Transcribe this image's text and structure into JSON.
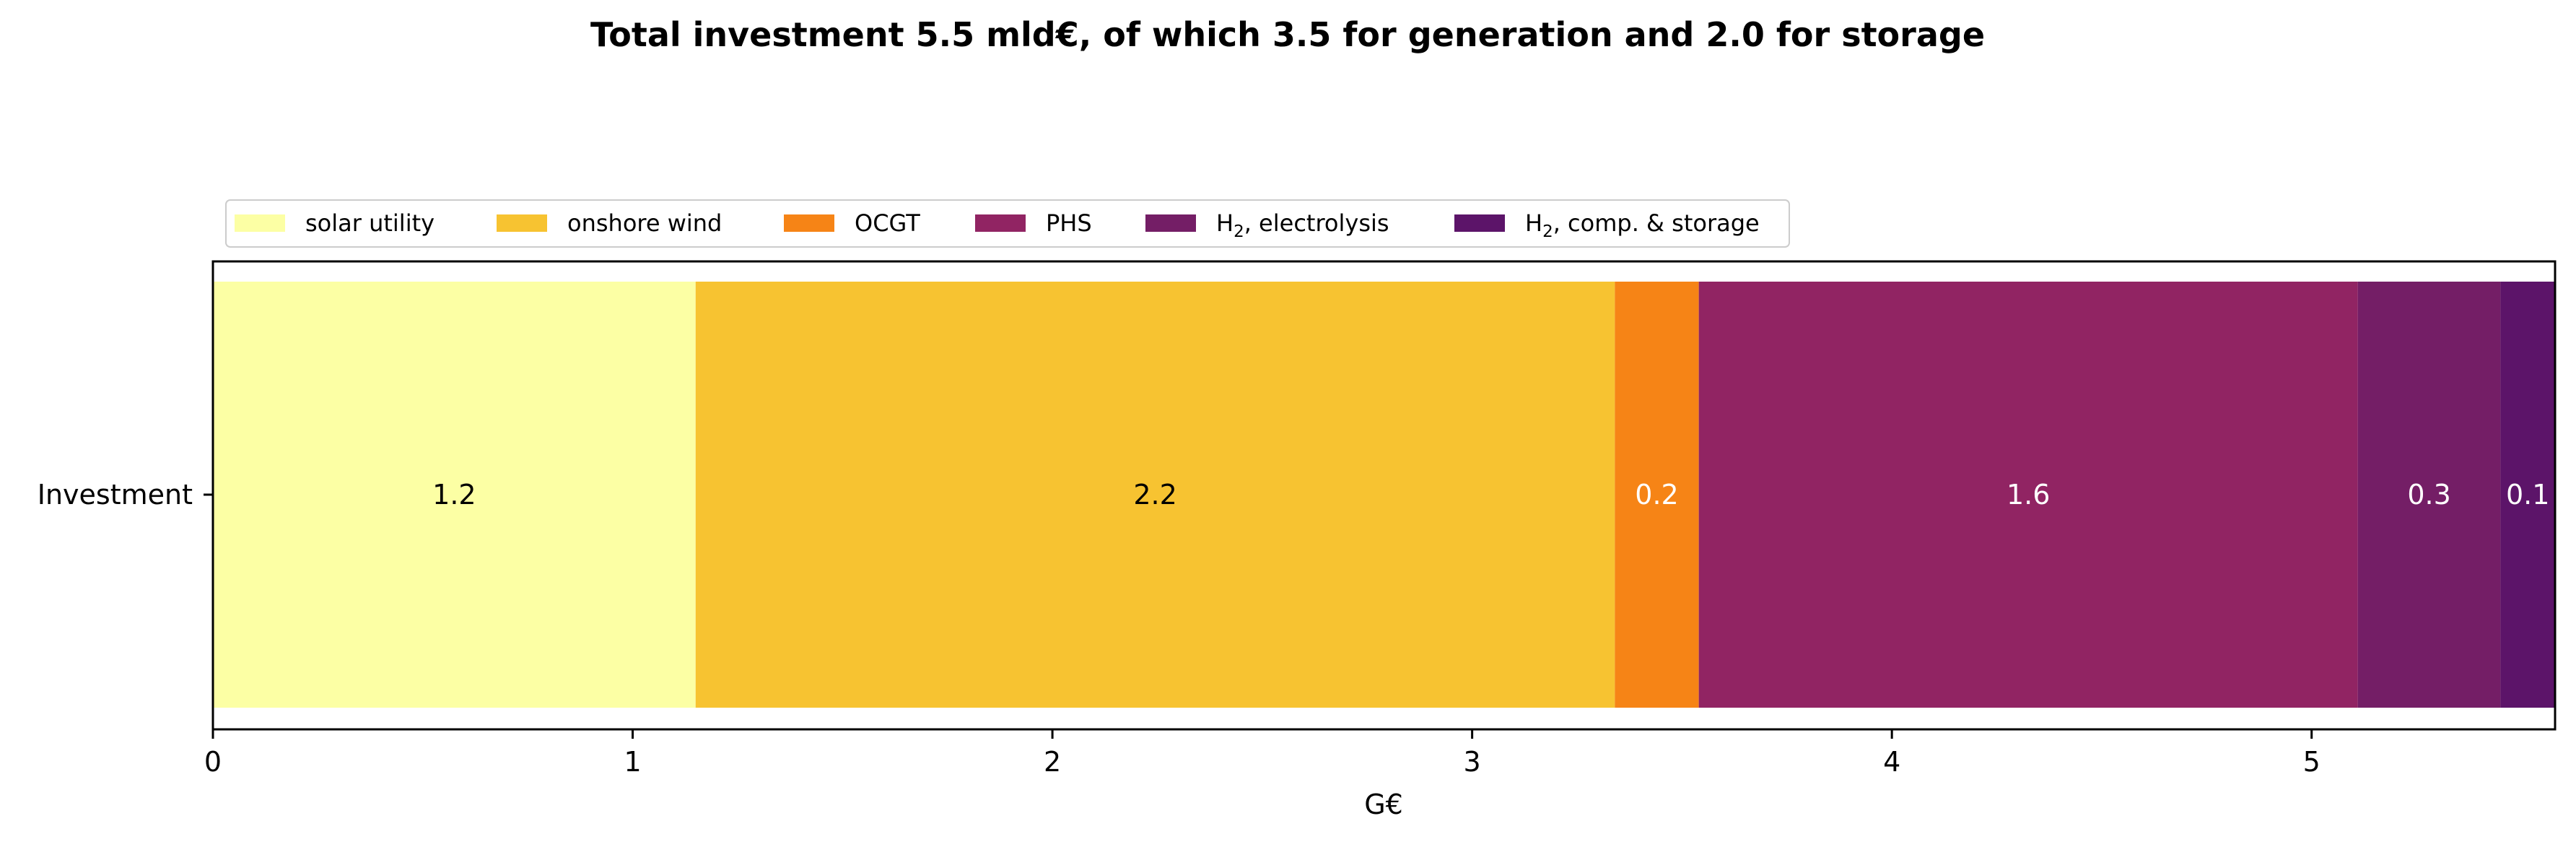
{
  "chart_data": {
    "type": "bar",
    "orientation": "horizontal",
    "stacked": true,
    "title": "Total investment 5.5 mld€, of which 3.5 for generation and 2.0 for storage",
    "xlabel": "G€",
    "ylabel": "",
    "categories": [
      "Investment"
    ],
    "xlim": [
      0,
      5.58
    ],
    "xticks": [
      0,
      1,
      2,
      3,
      4,
      5
    ],
    "grid": false,
    "legend_position": "top-left",
    "legend_columns": 6,
    "series": [
      {
        "name": "solar utility",
        "legend_main": "solar utility",
        "legend_sub": "",
        "legend_tail": "",
        "value": 1.15,
        "data_label": "1.2",
        "color": "#fcffa4",
        "label_color": "#000000"
      },
      {
        "name": "onshore wind",
        "legend_main": "onshore wind",
        "legend_sub": "",
        "legend_tail": "",
        "value": 2.19,
        "data_label": "2.2",
        "color": "#f7c331",
        "label_color": "#000000"
      },
      {
        "name": "OCGT",
        "legend_main": "OCGT",
        "legend_sub": "",
        "legend_tail": "",
        "value": 0.2,
        "data_label": "0.2",
        "color": "#f68416",
        "label_color": "#ffffff"
      },
      {
        "name": "PHS",
        "legend_main": "PHS",
        "legend_sub": "",
        "legend_tail": "",
        "value": 1.57,
        "data_label": "1.6",
        "color": "#912463",
        "label_color": "#ffffff"
      },
      {
        "name": "H2, electrolysis",
        "legend_main": "H",
        "legend_sub": "2",
        "legend_tail": ", electrolysis",
        "value": 0.34,
        "data_label": "0.3",
        "color": "#741e66",
        "label_color": "#ffffff"
      },
      {
        "name": "H2, comp. & storage",
        "legend_main": "H",
        "legend_sub": "2",
        "legend_tail": ", comp. & storage",
        "value": 0.14,
        "data_label": "0.1",
        "color": "#5c1469",
        "label_color": "#ffffff"
      }
    ]
  }
}
